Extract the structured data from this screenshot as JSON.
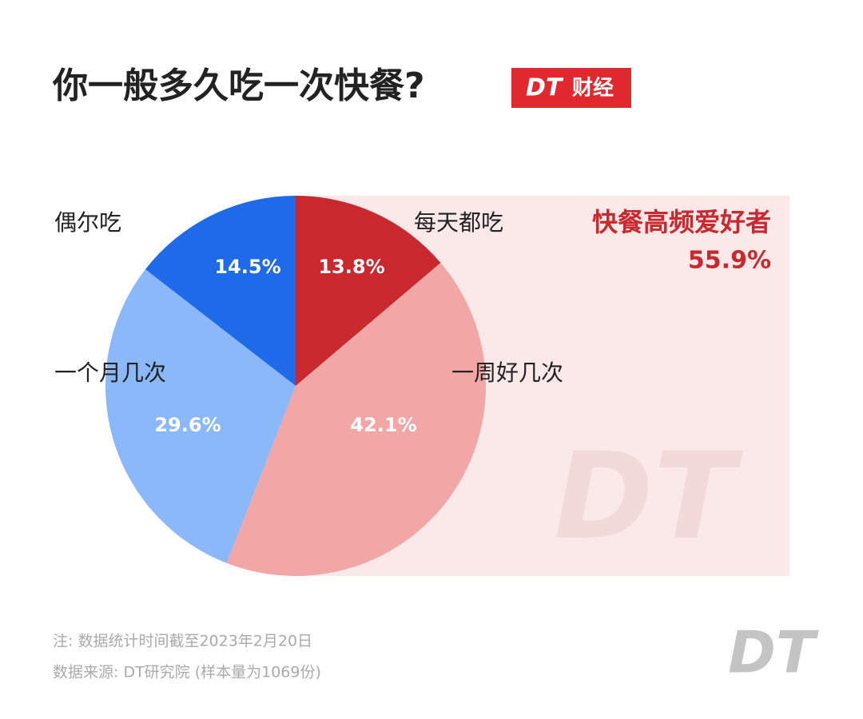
{
  "chart_data": {
    "type": "pie",
    "title": "你一般多久吃一次快餐?",
    "brand": {
      "logo": "DT",
      "name": "财经"
    },
    "categories": [
      "每天都吃",
      "一周好几次",
      "一个月几次",
      "偶尔吃"
    ],
    "values": [
      13.8,
      42.1,
      29.6,
      14.5
    ],
    "value_labels": [
      "13.8%",
      "42.1%",
      "29.6%",
      "14.5%"
    ],
    "colors": [
      "#c9282e",
      "#f2a6a6",
      "#8ab8f8",
      "#1f6ae8"
    ],
    "highlight": {
      "label": "快餐高频爱好者",
      "value_label": "55.9%"
    },
    "notes": [
      "注: 数据统计时间截至2023年2月20日",
      "数据来源: DT研究院 (样本量为1069份)"
    ]
  }
}
